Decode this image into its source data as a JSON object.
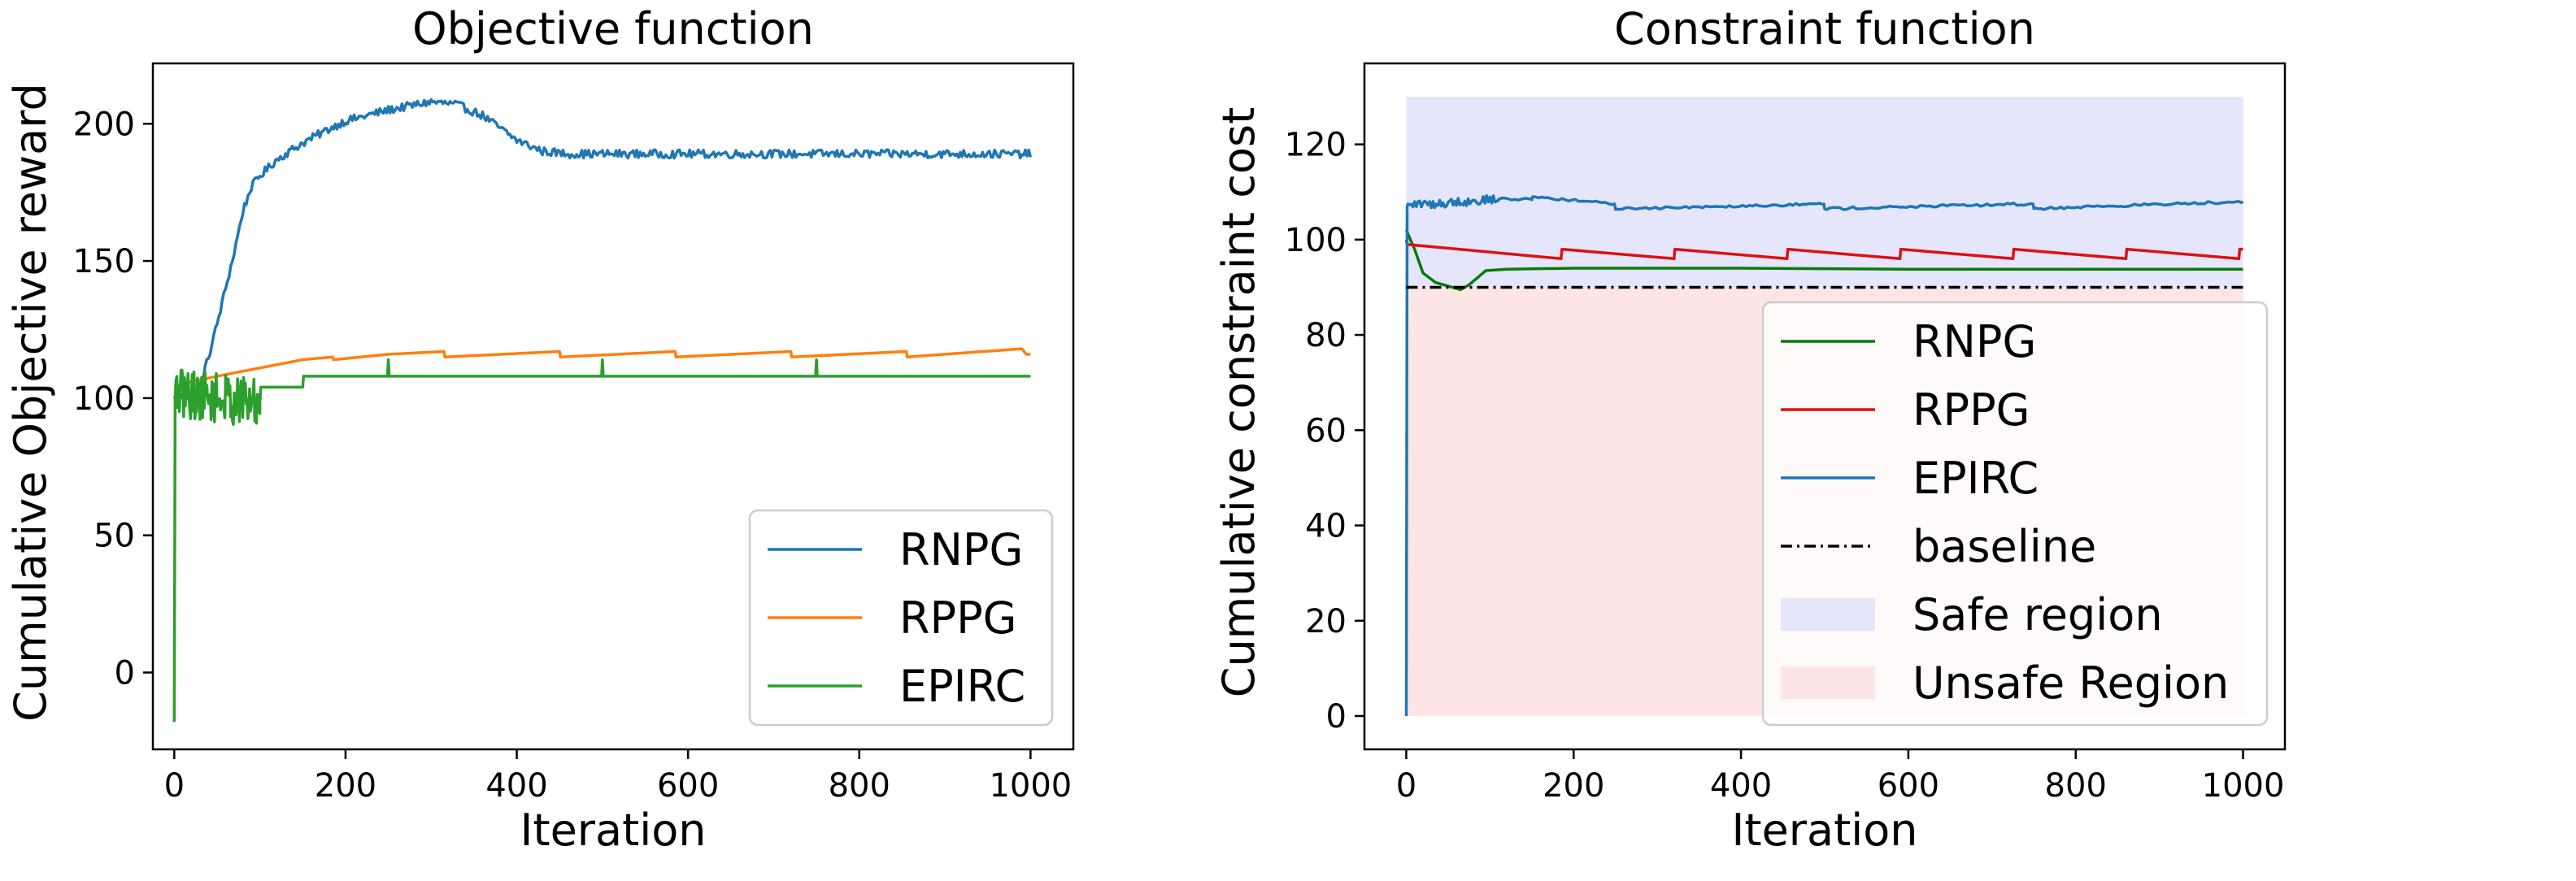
{
  "chart_data": [
    {
      "type": "line",
      "title": "Objective function",
      "xlabel": "Iteration",
      "ylabel": "Cumulative Objective reward",
      "xlim": [
        -25,
        1050
      ],
      "ylim": [
        -28,
        222
      ],
      "xticks": [
        0,
        200,
        400,
        600,
        800,
        1000
      ],
      "yticks": [
        0,
        50,
        100,
        150,
        200
      ],
      "grid": false,
      "legend_position": "lower right",
      "series": [
        {
          "name": "RNPG",
          "color": "#1f77b4",
          "x": [
            0,
            20,
            30,
            40,
            50,
            60,
            70,
            80,
            90,
            100,
            120,
            150,
            180,
            200,
            250,
            300,
            330,
            360,
            400,
            430,
            460,
            500,
            600,
            700,
            800,
            900,
            1000
          ],
          "y": [
            100,
            101,
            104,
            115,
            127,
            140,
            153,
            168,
            177,
            181,
            187,
            193,
            198,
            201,
            205,
            208,
            207,
            203,
            194,
            190,
            189,
            189,
            189,
            189,
            189,
            189,
            189
          ],
          "noise": 1.5
        },
        {
          "name": "RPPG",
          "color": "#ff7f0e",
          "x": [
            0,
            20,
            50,
            100,
            150,
            185,
            186,
            250,
            315,
            316,
            450,
            451,
            585,
            586,
            720,
            721,
            855,
            856,
            990,
            995,
            1000
          ],
          "y": [
            104,
            106,
            108,
            111,
            114,
            115,
            114,
            116,
            117,
            115,
            117,
            115,
            117,
            115,
            117,
            115,
            117,
            115,
            118,
            116,
            116
          ],
          "noise": 0
        },
        {
          "name": "EPIRC",
          "color": "#2ca02c",
          "x": [
            0,
            1,
            2,
            100,
            101,
            150,
            151,
            249,
            250,
            251,
            499,
            500,
            501,
            749,
            750,
            751,
            1000
          ],
          "y": [
            -18,
            100,
            102,
            98,
            104,
            104,
            108,
            108,
            114,
            108,
            108,
            114,
            108,
            108,
            114,
            108,
            108
          ],
          "noise": 9,
          "noise_range": [
            2,
            100
          ]
        }
      ]
    },
    {
      "type": "line",
      "title": "Constraint function",
      "xlabel": "Iteration",
      "ylabel": "Cumulative constraint cost",
      "xlim": [
        -50,
        1050
      ],
      "ylim": [
        -7,
        137
      ],
      "xticks": [
        0,
        200,
        400,
        600,
        800,
        1000
      ],
      "yticks": [
        0,
        20,
        40,
        60,
        80,
        100,
        120
      ],
      "grid": false,
      "legend_position": "lower right",
      "regions": [
        {
          "name": "Safe region",
          "color": "#e5e5fb",
          "x": [
            0,
            1000
          ],
          "y": [
            90,
            130
          ]
        },
        {
          "name": "Unsafe Region",
          "color": "#fde5e5",
          "x": [
            0,
            1000
          ],
          "y": [
            0,
            90
          ]
        }
      ],
      "series": [
        {
          "name": "RNPG",
          "color": "#0a7a0a",
          "x": [
            0,
            5,
            10,
            20,
            35,
            55,
            65,
            75,
            85,
            95,
            120,
            200,
            300,
            400,
            500,
            600,
            700,
            800,
            900,
            1000
          ],
          "y": [
            102,
            100,
            98,
            93,
            91,
            90,
            89.5,
            90.5,
            92,
            93.5,
            93.8,
            94,
            94,
            94,
            93.9,
            93.8,
            93.8,
            93.8,
            93.8,
            93.8
          ],
          "noise": 0
        },
        {
          "name": "RPPG",
          "color": "#dd1111",
          "x": [
            0,
            1,
            185,
            186,
            320,
            321,
            455,
            456,
            590,
            591,
            725,
            726,
            860,
            861,
            995,
            996,
            1000
          ],
          "y": [
            100,
            99,
            96,
            98,
            96,
            98,
            96,
            98,
            96,
            98,
            96,
            98,
            96,
            98,
            96,
            98,
            98
          ],
          "noise": 0
        },
        {
          "name": "EPIRC",
          "color": "#1f77b4",
          "x": [
            0,
            1,
            3,
            10,
            20,
            40,
            60,
            80,
            100,
            101,
            150,
            151,
            249,
            250,
            499,
            500,
            749,
            750,
            1000
          ],
          "y": [
            0,
            107,
            107,
            107.5,
            107.5,
            107.5,
            108,
            108,
            108.5,
            108.5,
            108.5,
            109,
            107.5,
            106.5,
            107.5,
            106.5,
            107.5,
            106.5,
            108
          ],
          "noise": 0.9,
          "noise_range": [
            2,
            110
          ]
        },
        {
          "name": "baseline",
          "color": "#000000",
          "dash": "dashdot",
          "x": [
            0,
            1000
          ],
          "y": [
            90,
            90
          ],
          "noise": 0
        }
      ]
    }
  ]
}
